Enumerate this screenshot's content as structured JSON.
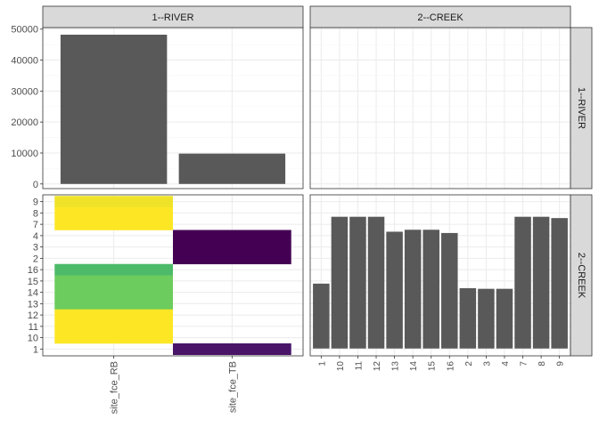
{
  "colors": {
    "bar": "#595959",
    "strip_bg": "#d9d9d9",
    "panel_border": "#333333",
    "grid_major": "#ebebeb",
    "grid_minor": "#f5f5f5"
  },
  "chart_data": {
    "type": "facet_grid",
    "facets": {
      "cols": [
        "1--RIVER",
        "2--CREEK"
      ],
      "rows": [
        "1--RIVER",
        "2--CREEK"
      ]
    },
    "panels": [
      {
        "row": "1--RIVER",
        "col": "1--RIVER",
        "type": "bar",
        "categories": [
          "site_fce_RB",
          "site_fce_TB"
        ],
        "values": [
          48200,
          9800
        ],
        "yticks": [
          0,
          10000,
          20000,
          30000,
          40000,
          50000
        ],
        "ylim": [
          -1500,
          50500
        ]
      },
      {
        "row": "1--RIVER",
        "col": "2--CREEK",
        "type": "empty"
      },
      {
        "row": "2--CREEK",
        "col": "1--RIVER",
        "type": "heatmap",
        "x": [
          "site_fce_RB",
          "site_fce_TB"
        ],
        "y": [
          "1",
          "10",
          "11",
          "12",
          "13",
          "14",
          "15",
          "16",
          "2",
          "3",
          "4",
          "7",
          "8",
          "9"
        ],
        "tiles": [
          {
            "x": "site_fce_RB",
            "y": "9",
            "color": "#efe32a"
          },
          {
            "x": "site_fce_RB",
            "y": "8",
            "color": "#fde725"
          },
          {
            "x": "site_fce_RB",
            "y": "7",
            "color": "#fde725"
          },
          {
            "x": "site_fce_TB",
            "y": "4",
            "color": "#440154"
          },
          {
            "x": "site_fce_TB",
            "y": "3",
            "color": "#440154"
          },
          {
            "x": "site_fce_TB",
            "y": "2",
            "color": "#440154"
          },
          {
            "x": "site_fce_RB",
            "y": "16",
            "color": "#4dba6a"
          },
          {
            "x": "site_fce_RB",
            "y": "15",
            "color": "#6ccc5d"
          },
          {
            "x": "site_fce_RB",
            "y": "14",
            "color": "#6ccc5d"
          },
          {
            "x": "site_fce_RB",
            "y": "13",
            "color": "#6ccc5d"
          },
          {
            "x": "site_fce_RB",
            "y": "12",
            "color": "#fde725"
          },
          {
            "x": "site_fce_RB",
            "y": "11",
            "color": "#fde725"
          },
          {
            "x": "site_fce_RB",
            "y": "10",
            "color": "#fde725"
          },
          {
            "x": "site_fce_TB",
            "y": "1",
            "color": "#481568"
          }
        ]
      },
      {
        "row": "2--CREEK",
        "col": "2--CREEK",
        "type": "bar",
        "categories": [
          "1",
          "10",
          "11",
          "12",
          "13",
          "14",
          "15",
          "16",
          "2",
          "3",
          "4",
          "7",
          "8",
          "9"
        ],
        "values": [
          1,
          2.03,
          2.03,
          2.03,
          1.8,
          1.83,
          1.83,
          1.78,
          0.93,
          0.92,
          0.92,
          2.03,
          2.03,
          2.01
        ]
      }
    ]
  }
}
